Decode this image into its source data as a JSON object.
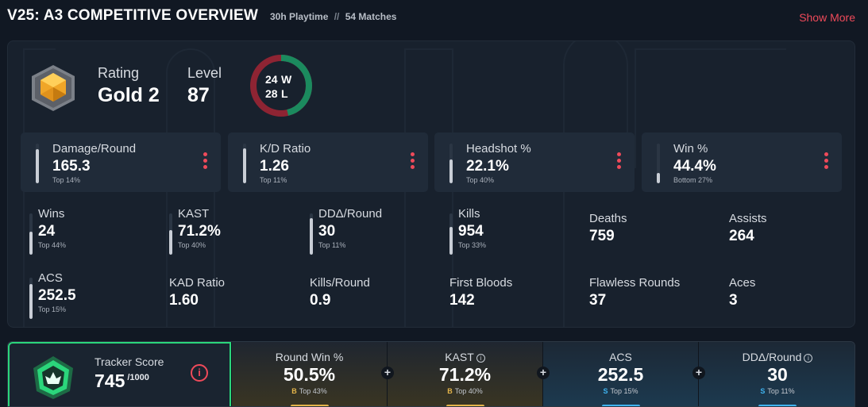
{
  "header": {
    "title": "V25: A3 COMPETITIVE OVERVIEW",
    "playtime": "30h Playtime",
    "separator": "//",
    "matches": "54 Matches",
    "show_more": "Show More"
  },
  "rank": {
    "icon": "gold-rank-icon",
    "rating_label": "Rating",
    "rating_value": "Gold 2",
    "level_label": "Level",
    "level_value": "87"
  },
  "record": {
    "wins": "24",
    "wins_label": "W",
    "losses": "28",
    "losses_label": "L",
    "win_color": "#1b8a5e",
    "loss_color": "#8e2433"
  },
  "cards": [
    {
      "label": "Damage/Round",
      "value": "165.3",
      "sub": "Top 14%",
      "level": 0.86
    },
    {
      "label": "K/D Ratio",
      "value": "1.26",
      "sub": "Top 11%",
      "level": 0.89
    },
    {
      "label": "Headshot %",
      "value": "22.1%",
      "sub": "Top 40%",
      "level": 0.6
    },
    {
      "label": "Win %",
      "value": "44.4%",
      "sub": "Bottom 27%",
      "level": 0.27
    }
  ],
  "stats": [
    {
      "label": "Wins",
      "value": "24",
      "sub": "Top 44%",
      "level": 0.56
    },
    {
      "label": "KAST",
      "value": "71.2%",
      "sub": "Top 40%",
      "level": 0.6
    },
    {
      "label": "DDΔ/Round",
      "value": "30",
      "sub": "Top 11%",
      "level": 0.89
    },
    {
      "label": "Kills",
      "value": "954",
      "sub": "Top 33%",
      "level": 0.67
    },
    {
      "label": "Deaths",
      "value": "759"
    },
    {
      "label": "Assists",
      "value": "264"
    },
    {
      "label": "ACS",
      "value": "252.5",
      "sub": "Top 15%",
      "level": 0.85
    },
    {
      "label": "KAD Ratio",
      "value": "1.60"
    },
    {
      "label": "Kills/Round",
      "value": "0.9"
    },
    {
      "label": "First Bloods",
      "value": "142"
    },
    {
      "label": "Flawless Rounds",
      "value": "37"
    },
    {
      "label": "Aces",
      "value": "3"
    }
  ],
  "tracker": {
    "label": "Tracker Score",
    "value": "745",
    "max": "/1000",
    "info_icon": "info-icon",
    "accent": "#2bd67b"
  },
  "metrics": [
    {
      "label": "Round Win %",
      "value": "50.5%",
      "grade": "B",
      "sub": "Top 43%",
      "grade_color": "#e5b54a",
      "tint": "gold"
    },
    {
      "label": "KAST",
      "value": "71.2%",
      "grade": "B",
      "sub": "Top 40%",
      "grade_color": "#e5b54a",
      "tint": "gold",
      "info": "i"
    },
    {
      "label": "ACS",
      "value": "252.5",
      "grade": "S",
      "sub": "Top 15%",
      "grade_color": "#3fb4f0",
      "tint": "blue"
    },
    {
      "label": "DDΔ/Round",
      "value": "30",
      "grade": "S",
      "sub": "Top 11%",
      "grade_color": "#3fb4f0",
      "tint": "blue",
      "info": "i"
    }
  ],
  "plus_symbol": "+"
}
